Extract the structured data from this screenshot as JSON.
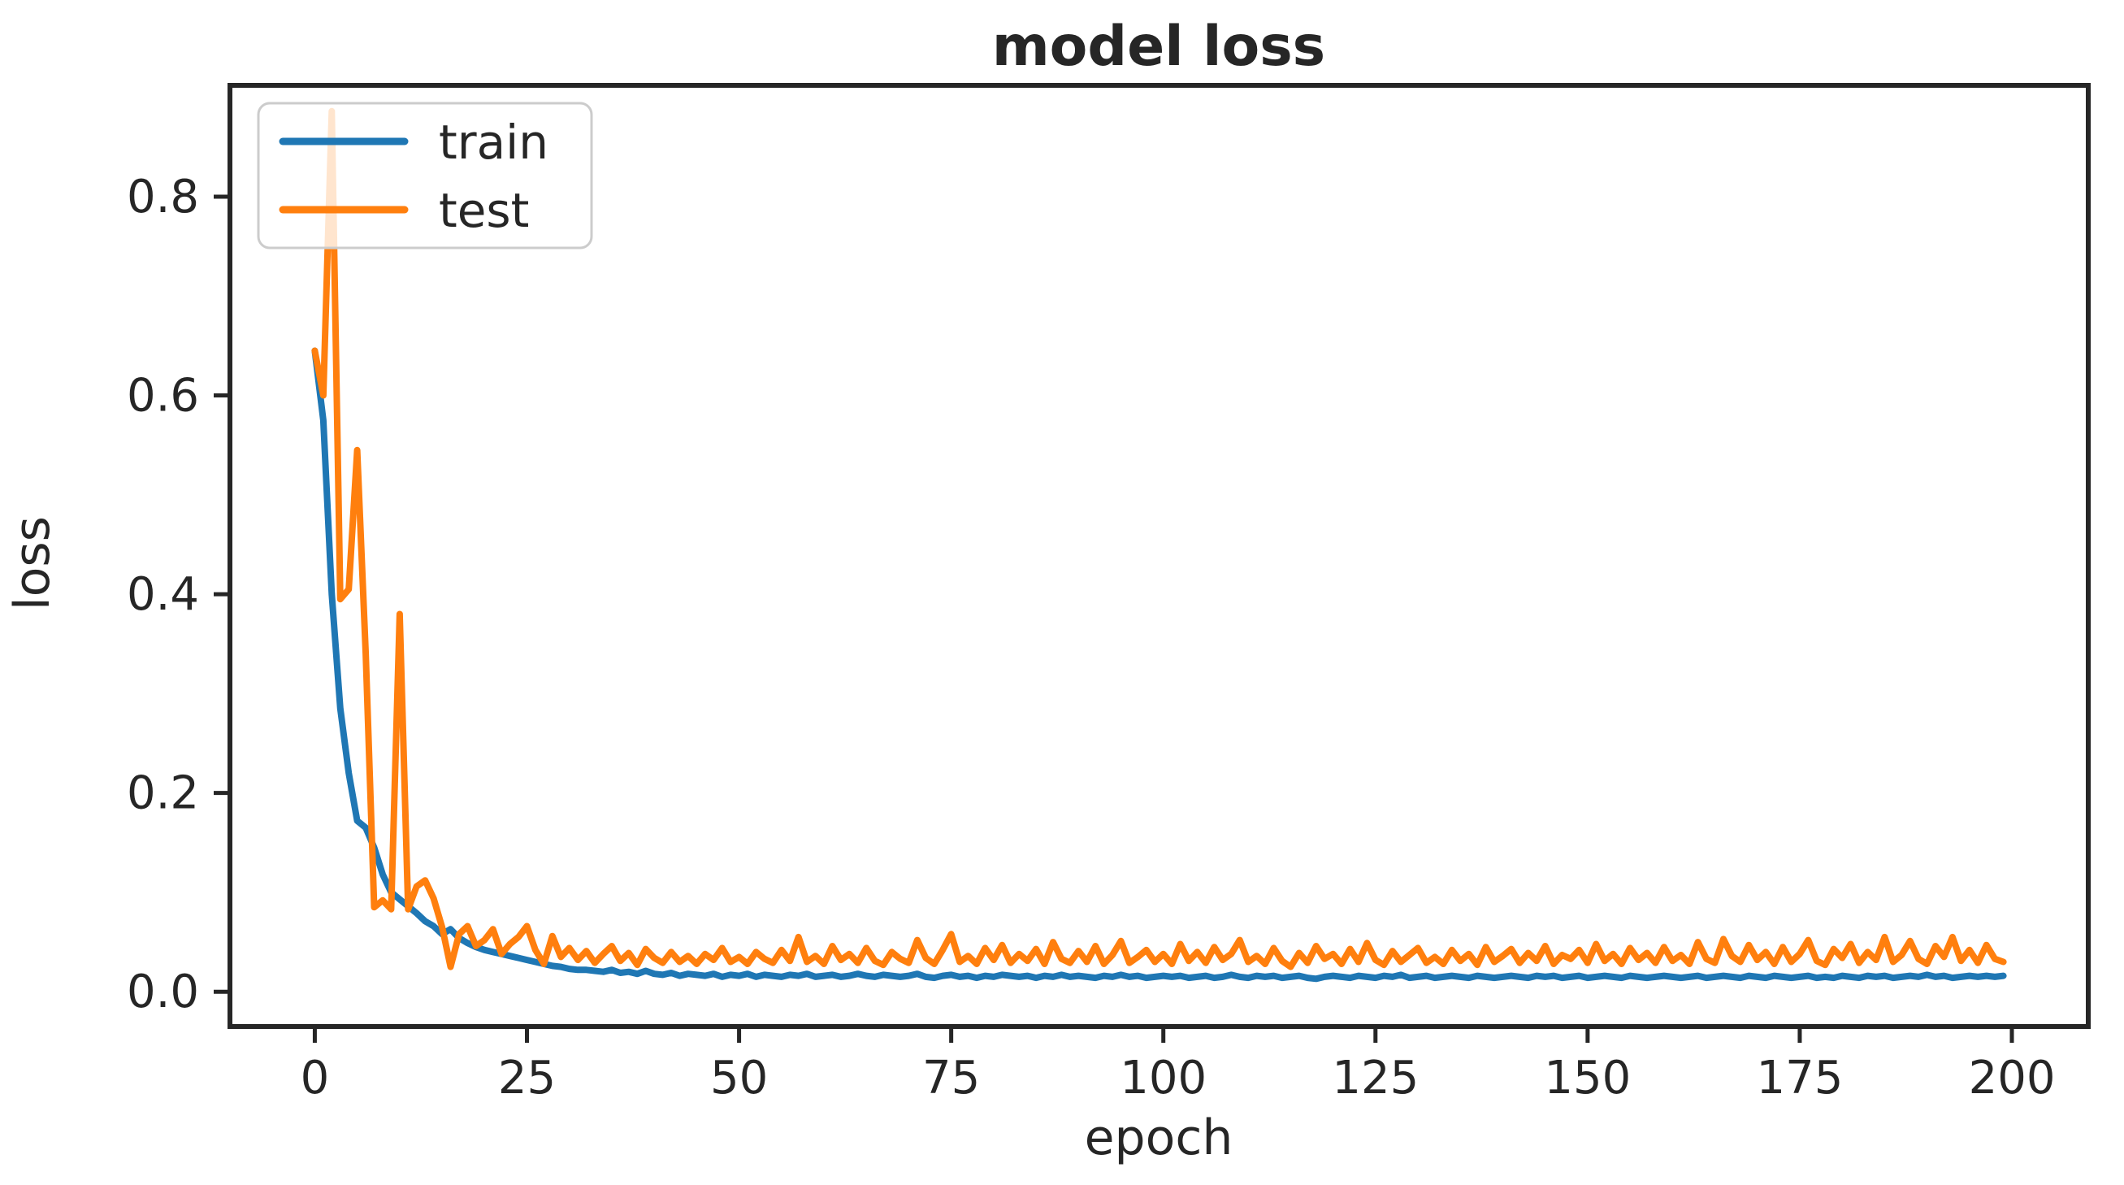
{
  "chart_data": {
    "type": "line",
    "title": "model loss",
    "xlabel": "epoch",
    "ylabel": "loss",
    "xlim": [
      -10,
      209
    ],
    "ylim": [
      -0.035,
      0.912
    ],
    "x_ticks": [
      0,
      25,
      50,
      75,
      100,
      125,
      150,
      175,
      200
    ],
    "x_tick_labels": [
      "0",
      "25",
      "50",
      "75",
      "100",
      "125",
      "150",
      "175",
      "200"
    ],
    "y_ticks": [
      0.0,
      0.2,
      0.4,
      0.6,
      0.8
    ],
    "y_tick_labels": [
      "0.0",
      "0.2",
      "0.4",
      "0.6",
      "0.8"
    ],
    "grid": false,
    "legend": {
      "position": "upper-left",
      "entries": [
        "train",
        "test"
      ]
    },
    "x_is_index": true,
    "series": [
      {
        "name": "train",
        "color": "#1f77b4",
        "values": [
          0.645,
          0.575,
          0.4,
          0.285,
          0.22,
          0.172,
          0.165,
          0.145,
          0.118,
          0.1,
          0.093,
          0.086,
          0.079,
          0.071,
          0.066,
          0.058,
          0.063,
          0.054,
          0.049,
          0.045,
          0.042,
          0.04,
          0.038,
          0.036,
          0.034,
          0.032,
          0.03,
          0.028,
          0.026,
          0.025,
          0.023,
          0.022,
          0.022,
          0.021,
          0.02,
          0.022,
          0.019,
          0.02,
          0.018,
          0.021,
          0.018,
          0.017,
          0.019,
          0.016,
          0.018,
          0.017,
          0.016,
          0.018,
          0.015,
          0.017,
          0.016,
          0.018,
          0.015,
          0.017,
          0.016,
          0.015,
          0.017,
          0.016,
          0.018,
          0.015,
          0.016,
          0.017,
          0.015,
          0.016,
          0.018,
          0.016,
          0.015,
          0.017,
          0.016,
          0.015,
          0.016,
          0.018,
          0.015,
          0.014,
          0.016,
          0.017,
          0.015,
          0.016,
          0.014,
          0.016,
          0.015,
          0.017,
          0.016,
          0.015,
          0.016,
          0.014,
          0.016,
          0.015,
          0.017,
          0.015,
          0.016,
          0.015,
          0.014,
          0.016,
          0.015,
          0.017,
          0.015,
          0.016,
          0.014,
          0.015,
          0.016,
          0.015,
          0.016,
          0.014,
          0.015,
          0.016,
          0.014,
          0.015,
          0.017,
          0.015,
          0.014,
          0.016,
          0.015,
          0.016,
          0.014,
          0.015,
          0.016,
          0.014,
          0.013,
          0.015,
          0.016,
          0.015,
          0.014,
          0.016,
          0.015,
          0.014,
          0.016,
          0.015,
          0.017,
          0.014,
          0.015,
          0.016,
          0.014,
          0.015,
          0.016,
          0.015,
          0.014,
          0.016,
          0.015,
          0.014,
          0.015,
          0.016,
          0.015,
          0.014,
          0.016,
          0.015,
          0.016,
          0.014,
          0.015,
          0.016,
          0.014,
          0.015,
          0.016,
          0.015,
          0.014,
          0.016,
          0.015,
          0.014,
          0.015,
          0.016,
          0.015,
          0.014,
          0.015,
          0.016,
          0.014,
          0.015,
          0.016,
          0.015,
          0.014,
          0.016,
          0.015,
          0.014,
          0.016,
          0.015,
          0.014,
          0.015,
          0.016,
          0.014,
          0.015,
          0.014,
          0.016,
          0.015,
          0.014,
          0.016,
          0.015,
          0.016,
          0.014,
          0.015,
          0.016,
          0.015,
          0.017,
          0.015,
          0.016,
          0.014,
          0.015,
          0.016,
          0.015,
          0.016,
          0.015,
          0.016
        ]
      },
      {
        "name": "test",
        "color": "#ff7f0e",
        "values": [
          0.645,
          0.6,
          0.886,
          0.395,
          0.405,
          0.545,
          0.34,
          0.085,
          0.092,
          0.083,
          0.38,
          0.083,
          0.106,
          0.112,
          0.094,
          0.065,
          0.025,
          0.058,
          0.066,
          0.046,
          0.052,
          0.063,
          0.038,
          0.048,
          0.055,
          0.066,
          0.042,
          0.028,
          0.056,
          0.035,
          0.044,
          0.032,
          0.041,
          0.029,
          0.038,
          0.046,
          0.031,
          0.039,
          0.027,
          0.043,
          0.034,
          0.029,
          0.04,
          0.03,
          0.036,
          0.028,
          0.038,
          0.032,
          0.044,
          0.03,
          0.035,
          0.028,
          0.04,
          0.033,
          0.029,
          0.042,
          0.031,
          0.055,
          0.03,
          0.036,
          0.028,
          0.046,
          0.032,
          0.038,
          0.029,
          0.044,
          0.031,
          0.027,
          0.04,
          0.033,
          0.029,
          0.052,
          0.034,
          0.028,
          0.042,
          0.058,
          0.03,
          0.036,
          0.028,
          0.044,
          0.032,
          0.047,
          0.029,
          0.038,
          0.031,
          0.043,
          0.028,
          0.05,
          0.033,
          0.029,
          0.041,
          0.03,
          0.046,
          0.028,
          0.037,
          0.051,
          0.029,
          0.035,
          0.042,
          0.03,
          0.038,
          0.028,
          0.048,
          0.031,
          0.04,
          0.029,
          0.045,
          0.032,
          0.038,
          0.052,
          0.03,
          0.036,
          0.028,
          0.044,
          0.031,
          0.025,
          0.039,
          0.029,
          0.046,
          0.033,
          0.038,
          0.028,
          0.043,
          0.03,
          0.049,
          0.032,
          0.027,
          0.041,
          0.03,
          0.037,
          0.044,
          0.029,
          0.035,
          0.028,
          0.042,
          0.031,
          0.038,
          0.027,
          0.045,
          0.03,
          0.036,
          0.043,
          0.029,
          0.039,
          0.031,
          0.046,
          0.028,
          0.037,
          0.033,
          0.042,
          0.029,
          0.048,
          0.031,
          0.038,
          0.028,
          0.044,
          0.032,
          0.039,
          0.029,
          0.045,
          0.031,
          0.037,
          0.028,
          0.05,
          0.033,
          0.029,
          0.053,
          0.036,
          0.03,
          0.047,
          0.032,
          0.04,
          0.028,
          0.045,
          0.03,
          0.038,
          0.052,
          0.031,
          0.027,
          0.043,
          0.034,
          0.048,
          0.029,
          0.04,
          0.032,
          0.055,
          0.03,
          0.037,
          0.051,
          0.033,
          0.028,
          0.046,
          0.035,
          0.055,
          0.031,
          0.042,
          0.029,
          0.047,
          0.033,
          0.03
        ]
      }
    ]
  },
  "colors": {
    "spine": "#262626",
    "tick": "#262626",
    "text": "#262626",
    "legend_border": "#cccccc",
    "legend_fill_alpha": 0.8,
    "background": "#ffffff"
  }
}
